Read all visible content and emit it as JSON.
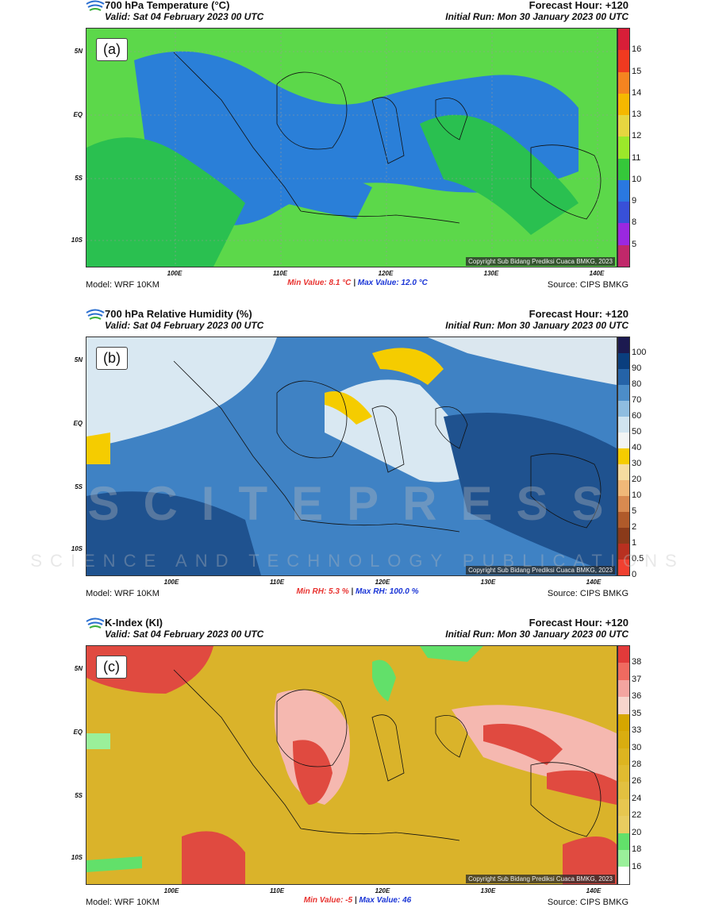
{
  "panels": [
    {
      "id": "a",
      "title": "700 hPa Temperature (°C)",
      "valid": "Valid: Sat 04 February 2023 00 UTC",
      "forecast_hour": "Forecast Hour: +120",
      "initial_run": "Initial Run: Mon 30 January 2023 00 UTC",
      "panel_label": "(a)",
      "copyright": "Copyright Sub Bidang Prediksi Cuaca BMKG, 2023",
      "min_text": "Min Value: 8.1 °C",
      "separator": "|",
      "max_text": "Max Value: 12.0 °C",
      "model": "Model: WRF 10KM",
      "source": "Source: CIPS BMKG",
      "colorbar_ticks": [
        "16",
        "15",
        "14",
        "13",
        "12",
        "11",
        "10",
        "9",
        "8",
        "5"
      ],
      "colorbar_colors": [
        "#d81e38",
        "#f03a20",
        "#f58420",
        "#f5b800",
        "#e6d640",
        "#9be82a",
        "#35c83a",
        "#2a78e0",
        "#3850d8",
        "#9a28e0",
        "#c0286a"
      ],
      "map_base": "#5cd84a",
      "map_accent": "#2a7fd8",
      "map_blob": "#2ac050"
    },
    {
      "id": "b",
      "title": "700 hPa Relative Humidity (%)",
      "valid": "Valid: Sat 04 February 2023 00 UTC",
      "forecast_hour": "Forecast Hour: +120",
      "initial_run": "Initial Run: Mon 30 January 2023 00 UTC",
      "panel_label": "(b)",
      "copyright": "Copyright Sub Bidang Prediksi Cuaca BMKG, 2023",
      "min_text": "Min RH:  5.3 %",
      "separator": "|",
      "max_text": "Max RH: 100.0 %",
      "model": "Model: WRF 10KM",
      "source": "Source: CIPS BMKG",
      "colorbar_ticks": [
        "100",
        "90",
        "80",
        "70",
        "60",
        "50",
        "40",
        "30",
        "20",
        "10",
        "5",
        "2",
        "1",
        "0.5",
        "0"
      ],
      "colorbar_colors": [
        "#1c1a50",
        "#0a3e7e",
        "#2563a8",
        "#4c8dc8",
        "#8fbde0",
        "#d0e4f0",
        "#f2f4f4",
        "#f5cc00",
        "#f5dca0",
        "#f0b878",
        "#d88a50",
        "#b05a2a",
        "#8a3a1a",
        "#b83020",
        "#f04030"
      ],
      "map_base": "#3f82c4",
      "map_accent": "#1f528f",
      "map_blob": "#d9e8f2"
    },
    {
      "id": "c",
      "title": "K-Index (KI)",
      "valid": "Valid: Sat 04 February 2023 00 UTC",
      "forecast_hour": "Forecast Hour: +120",
      "initial_run": "Initial Run: Mon 30 January 2023 00 UTC",
      "panel_label": "(c)",
      "copyright": "Copyright Sub Bidang Prediksi Cuaca BMKG, 2023",
      "min_text": "Min Value:  -5",
      "separator": "|",
      "max_text": "Max Value:  46",
      "model": "Model: WRF 10KM",
      "source": "Source: CIPS BMKG",
      "colorbar_ticks": [
        "38",
        "37",
        "36",
        "35",
        "33",
        "30",
        "28",
        "26",
        "24",
        "22",
        "20",
        "18",
        "16"
      ],
      "colorbar_colors": [
        "#e23a3a",
        "#f06a60",
        "#f3a5a0",
        "#f7d5cc",
        "#d6a600",
        "#d9ad10",
        "#ddb420",
        "#e0bb30",
        "#e2c040",
        "#e6c650",
        "#e8cc60",
        "#62e06a",
        "#9af09a",
        "#ffffff"
      ],
      "map_base": "#dab32a",
      "map_accent": "#e04a40",
      "map_blob": "#f5b8b0"
    }
  ],
  "axes": {
    "lat_labels": [
      "5N",
      "EQ",
      "5S",
      "10S"
    ],
    "lon_labels": [
      "100E",
      "110E",
      "120E",
      "130E",
      "140E"
    ]
  },
  "watermark": {
    "line1": "SCITEPRESS",
    "line2": "SCIENCE AND TECHNOLOGY PUBLICATIONS"
  }
}
